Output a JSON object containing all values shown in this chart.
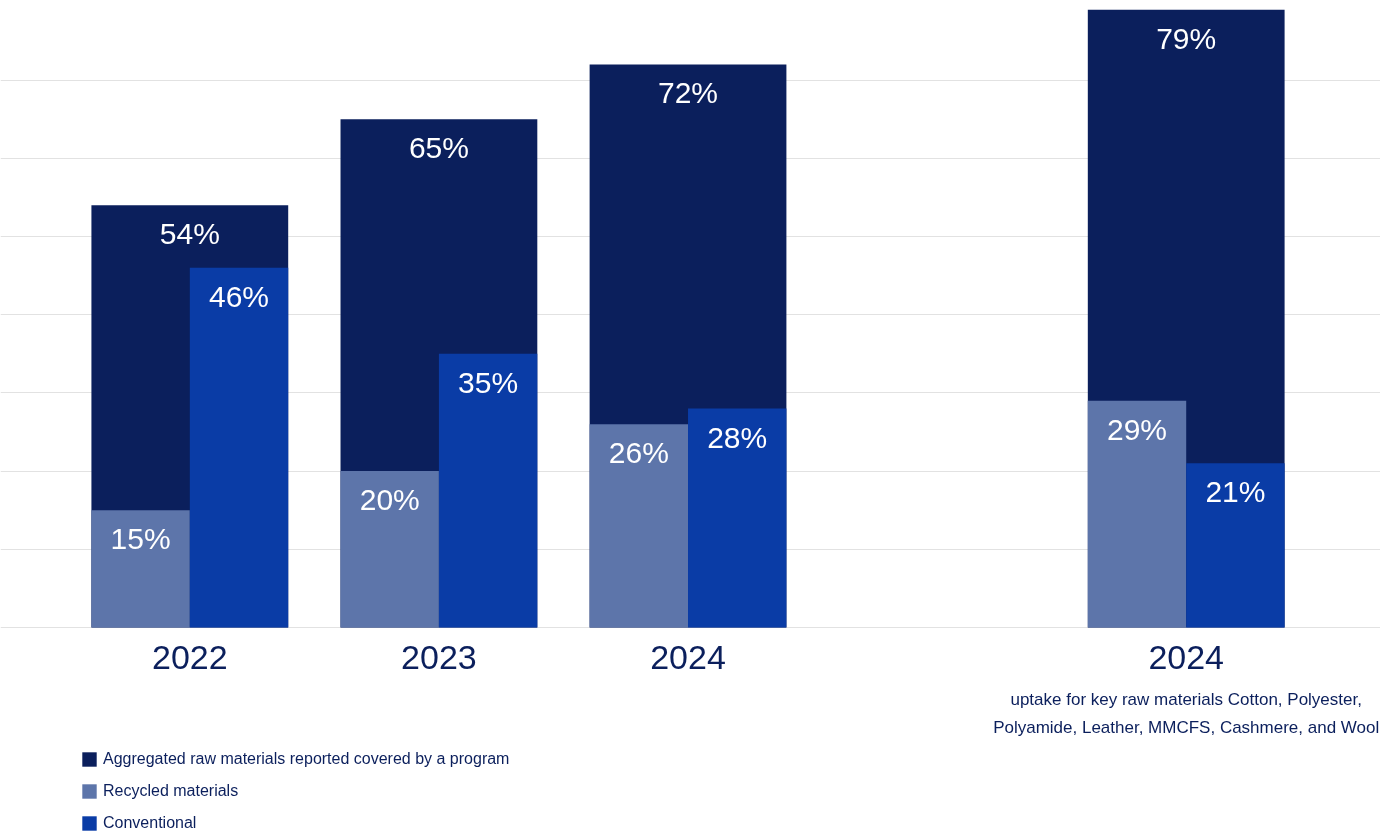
{
  "chart_data": {
    "type": "bar",
    "categories": [
      "2022",
      "2023",
      "2024",
      null,
      "2024"
    ],
    "series": [
      {
        "name": "Aggregated raw materials reported covered by a program",
        "color": "#0b1f5c",
        "values": [
          54,
          65,
          72,
          null,
          79
        ],
        "value_labels": [
          "54%",
          "65%",
          "72%",
          null,
          "79%"
        ]
      },
      {
        "name": "Recycled materials",
        "color": "#5d75aa",
        "values": [
          15,
          20,
          26,
          null,
          29
        ],
        "value_labels": [
          "15%",
          "20%",
          "26%",
          null,
          "29%"
        ]
      },
      {
        "name": "Conventional",
        "color": "#0a3ca6",
        "values": [
          46,
          35,
          28,
          null,
          21
        ],
        "value_labels": [
          "46%",
          "35%",
          "28%",
          null,
          "21%"
        ]
      }
    ],
    "grid": "y",
    "legend": "bottom left",
    "annotations": [
      "uptake for key raw materials Cotton, Polyester, Polyamide, Leather, MMCFS, Cashmere, and Wool"
    ]
  }
}
